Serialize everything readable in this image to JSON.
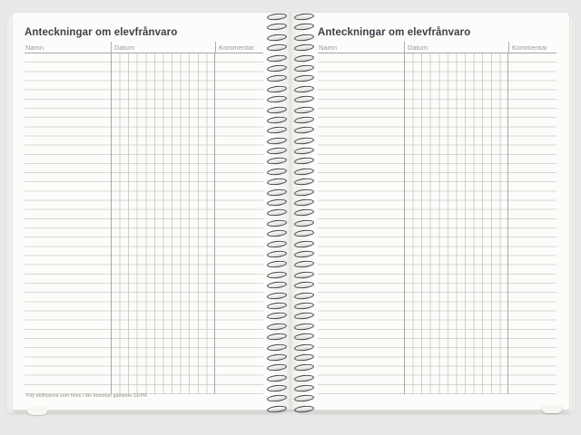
{
  "spread": {
    "left_page": {
      "heading": "Anteckningar om elevfrånvaro",
      "columns": {
        "namn": "Namn",
        "datum": "Datum",
        "kommentar": "Kommentar"
      },
      "footnote": "Följ riktlinjerna som finns i din kommun gällande GDPR"
    },
    "right_page": {
      "heading": "Anteckningar om elevfrånvaro",
      "columns": {
        "namn": "Namn",
        "datum": "Datum",
        "kommentar": "Kommentar"
      }
    }
  },
  "grid": {
    "datum_subcolumns": 12,
    "writing_rows": 37,
    "binding_loops": 39
  },
  "colors": {
    "paper": "#fcfcfa",
    "background": "#e8eae9",
    "heading_text": "#3d4248",
    "label_text": "#9a9a98",
    "grid_line": "#d7d7d4",
    "column_separator": "#a8a8a6",
    "wire": "#414141"
  }
}
